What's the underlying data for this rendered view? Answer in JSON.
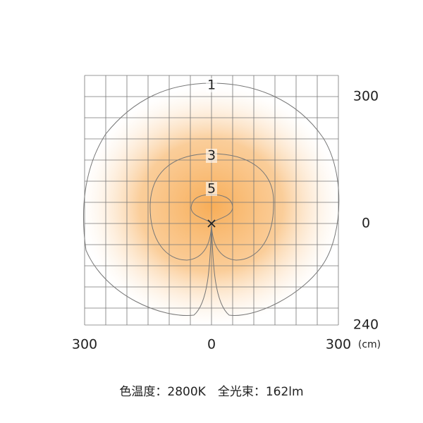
{
  "chart_data": {
    "type": "contour",
    "xlim": [
      -300,
      300
    ],
    "ylim": [
      -240,
      350
    ],
    "xticks": [
      {
        "value": -300,
        "label": "300"
      },
      0,
      300
    ],
    "yticks": [
      300,
      0,
      {
        "value": -240,
        "label": "240"
      }
    ],
    "unit_label": "(cm)",
    "levels": [
      1,
      3,
      5
    ],
    "color": "#f7a94f",
    "caption": "色温度：2800K　全光束：162lm"
  }
}
